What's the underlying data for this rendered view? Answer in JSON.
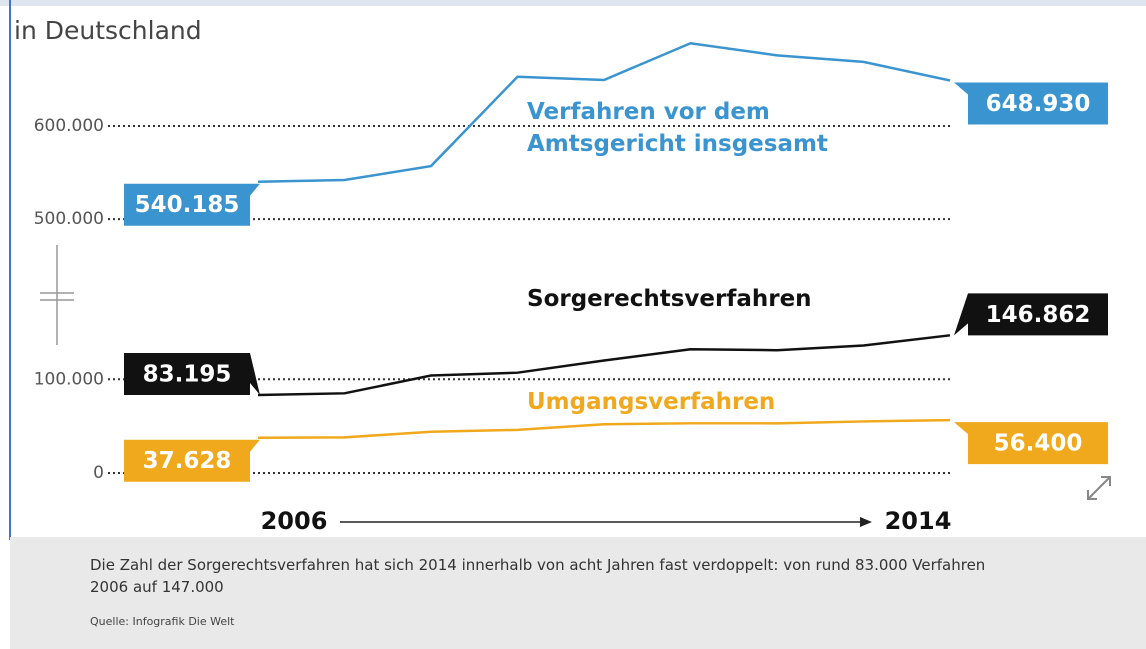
{
  "chart_data": {
    "type": "line",
    "subtitle": "in Deutschland",
    "categories": [
      "2006",
      null,
      null,
      null,
      null,
      null,
      null,
      null,
      "2014"
    ],
    "ylim": [
      0,
      160000
    ],
    "yticks": [
      0,
      {
        "value": 100000,
        "label": "100.000"
      }
    ],
    "y2lim": [
      470000,
      700000
    ],
    "y2ticks": [
      {
        "value": 500000,
        "label": "500.000"
      },
      {
        "value": 600000,
        "label": "600.000"
      }
    ],
    "grid": true,
    "series": [
      {
        "name": "Verfahren vor dem Amtsgericht insgesamt",
        "color": "#3a94cf",
        "axis": "y2",
        "values": [
          540185,
          542000,
          557000,
          653000,
          649500,
          689000,
          676000,
          669000,
          648930
        ],
        "value_labels": [
          "540.185",
          null,
          null,
          null,
          null,
          null,
          null,
          null,
          "648.930"
        ]
      },
      {
        "name": "Sorgerechtsverfahren",
        "color": "#111111",
        "values": [
          83195,
          85000,
          104000,
          107000,
          120000,
          132000,
          131000,
          136000,
          146862
        ],
        "value_labels": [
          "83.195",
          null,
          null,
          null,
          null,
          null,
          null,
          null,
          "146.862"
        ]
      },
      {
        "name": "Umgangsverfahren",
        "color": "#f0a81c",
        "values": [
          37628,
          38000,
          44000,
          46000,
          52000,
          53000,
          53000,
          55000,
          56400
        ],
        "value_labels": [
          "37.628",
          null,
          null,
          null,
          null,
          null,
          null,
          null,
          "56.400"
        ]
      }
    ],
    "caption": "Die Zahl der Sorgerechtsverfahren hat sich 2014 innerhalb von acht Jahren fast verdoppelt: von rund 83.000 Verfahren 2006 auf 147.000",
    "source": "Quelle: Infografik Die Welt"
  }
}
